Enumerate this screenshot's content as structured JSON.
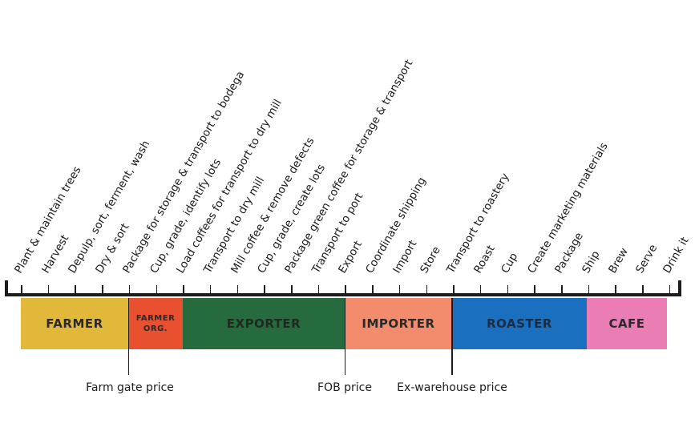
{
  "steps": [
    "Plant & maintain trees",
    "Harvest",
    "Depulp, sort, ferment, wash",
    "Dry & sort",
    "Package for storage & transport to bodega",
    "Cup, grade, identify lots",
    "Load coffees for transport to dry mill",
    "Transport to dry mill",
    "Mill coffee & remove defects",
    "Cup, grade, create lots",
    "Package green coffee for storage & transport",
    "Transport to port",
    "Export",
    "Coordinate shipping",
    "Import",
    "Store",
    "Transport to roastery",
    "Roast",
    "Cup",
    "Create marketing materials",
    "Package",
    "Ship",
    "Brew",
    "Serve",
    "Drink it"
  ],
  "stages": [
    {
      "label": "FARMER",
      "color": "#E2B83A",
      "text_color": "#2a2a2a"
    },
    {
      "label": "FARMER\nORG.",
      "color": "#E8502F",
      "text_color": "#2a2a2a"
    },
    {
      "label": "EXPORTER",
      "color": "#256B3E",
      "text_color": "#1e2a20"
    },
    {
      "label": "IMPORTER",
      "color": "#F28C6C",
      "text_color": "#2a2a2a"
    },
    {
      "label": "ROASTER",
      "color": "#1A6FBF",
      "text_color": "#1b2d44"
    },
    {
      "label": "CAFE",
      "color": "#EB7DB5",
      "text_color": "#2a2a2a"
    }
  ],
  "prices": [
    {
      "label": "Farm gate price"
    },
    {
      "label": "FOB price"
    },
    {
      "label": "Ex-warehouse price"
    }
  ]
}
